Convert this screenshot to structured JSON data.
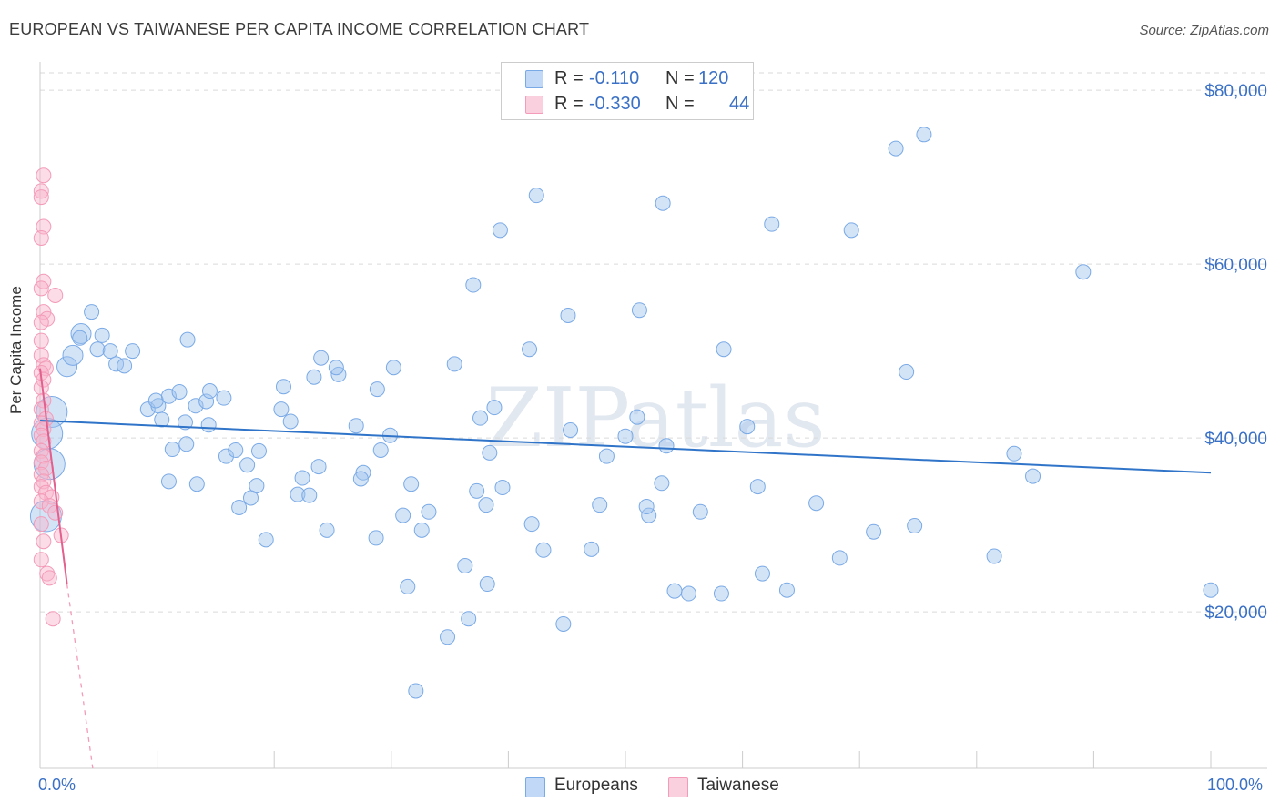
{
  "title": "EUROPEAN VS TAIWANESE PER CAPITA INCOME CORRELATION CHART",
  "source": "Source: ZipAtlas.com",
  "watermark": "ZIPatlas",
  "legend": {
    "rows": [
      {
        "r_label": "R =",
        "r_value": "-0.110",
        "n_label": "N =",
        "n_value": "120"
      },
      {
        "r_label": "R =",
        "r_value": "-0.330",
        "n_label": "N =",
        "n_value": "44"
      }
    ]
  },
  "bottom_legend": {
    "europeans": "Europeans",
    "taiwanese": "Taiwanese"
  },
  "x_axis": {
    "min_label": "0.0%",
    "max_label": "100.0%"
  },
  "chart_data": {
    "type": "scatter",
    "title": "EUROPEAN VS TAIWANESE PER CAPITA INCOME CORRELATION CHART",
    "xlabel": "",
    "ylabel": "Per Capita Income",
    "xlim": [
      0,
      100
    ],
    "ylim": [
      2000,
      82000
    ],
    "y_ticks": [
      20000,
      40000,
      60000,
      80000
    ],
    "y_tick_labels": [
      "$20,000",
      "$40,000",
      "$60,000",
      "$80,000"
    ],
    "x_tick_labels": [
      "0.0%",
      "100.0%"
    ],
    "grid": true,
    "legend_position": "top-center",
    "colors": {
      "europeans": "#7aaae6",
      "taiwanese": "#f39bb8",
      "europeans_line": "#2f74c8",
      "taiwanese_line": "#e2608d",
      "tick_text": "#3a70c5"
    },
    "series": [
      {
        "name": "Europeans",
        "r": -0.11,
        "n": 120,
        "trend": {
          "x": [
            0,
            100
          ],
          "y": [
            42000,
            36000
          ]
        },
        "points": [
          [
            1.0,
            43000,
            3
          ],
          [
            0.6,
            40500,
            3
          ],
          [
            0.8,
            37000,
            3
          ],
          [
            0.5,
            31000,
            3
          ],
          [
            2.3,
            48200,
            2
          ],
          [
            2.8,
            49500,
            2
          ],
          [
            3.5,
            52000,
            2
          ],
          [
            4.4,
            54500,
            1
          ],
          [
            3.4,
            51500,
            1
          ],
          [
            5.3,
            51800,
            1
          ],
          [
            4.9,
            50200,
            1
          ],
          [
            6.0,
            50000,
            1
          ],
          [
            6.5,
            48500,
            1
          ],
          [
            7.9,
            50000,
            1
          ],
          [
            7.2,
            48300,
            1
          ],
          [
            12.6,
            51300,
            1
          ],
          [
            9.2,
            43300,
            1
          ],
          [
            10.1,
            43700,
            1
          ],
          [
            9.9,
            44300,
            1
          ],
          [
            11.0,
            44800,
            1
          ],
          [
            11.9,
            45300,
            1
          ],
          [
            10.4,
            42100,
            1
          ],
          [
            13.3,
            43700,
            1
          ],
          [
            14.2,
            44200,
            1
          ],
          [
            14.5,
            45400,
            1
          ],
          [
            15.7,
            44600,
            1
          ],
          [
            12.4,
            41800,
            1
          ],
          [
            14.4,
            41500,
            1
          ],
          [
            11.3,
            38700,
            1
          ],
          [
            12.5,
            39300,
            1
          ],
          [
            15.9,
            37900,
            1
          ],
          [
            16.7,
            38600,
            1
          ],
          [
            17.7,
            36900,
            1
          ],
          [
            18.7,
            38500,
            1
          ],
          [
            20.8,
            45900,
            1
          ],
          [
            20.6,
            43300,
            1
          ],
          [
            21.4,
            41900,
            1
          ],
          [
            23.4,
            47000,
            1
          ],
          [
            25.5,
            47300,
            1
          ],
          [
            24.0,
            49200,
            1
          ],
          [
            25.3,
            48100,
            1
          ],
          [
            28.8,
            45600,
            1
          ],
          [
            30.2,
            48100,
            1
          ],
          [
            35.4,
            48500,
            1
          ],
          [
            27.0,
            41400,
            1
          ],
          [
            29.1,
            38600,
            1
          ],
          [
            29.9,
            40300,
            1
          ],
          [
            31.7,
            34700,
            1
          ],
          [
            23.8,
            36700,
            1
          ],
          [
            27.6,
            36000,
            1
          ],
          [
            27.4,
            35300,
            1
          ],
          [
            22.4,
            35400,
            1
          ],
          [
            22.0,
            33500,
            1
          ],
          [
            23.0,
            33400,
            1
          ],
          [
            18.5,
            34500,
            1
          ],
          [
            17.0,
            32000,
            1
          ],
          [
            18.0,
            33100,
            1
          ],
          [
            11.0,
            35000,
            1
          ],
          [
            13.4,
            34700,
            1
          ],
          [
            19.3,
            28300,
            1
          ],
          [
            24.5,
            29400,
            1
          ],
          [
            28.7,
            28500,
            1
          ],
          [
            31.0,
            31100,
            1
          ],
          [
            32.6,
            29400,
            1
          ],
          [
            33.2,
            31500,
            1
          ],
          [
            36.3,
            25300,
            1
          ],
          [
            31.4,
            22900,
            1
          ],
          [
            38.2,
            23200,
            1
          ],
          [
            37.3,
            33900,
            1
          ],
          [
            38.1,
            32300,
            1
          ],
          [
            39.5,
            34300,
            1
          ],
          [
            38.8,
            43500,
            1
          ],
          [
            37.6,
            42300,
            1
          ],
          [
            38.4,
            38300,
            1
          ],
          [
            41.8,
            50200,
            1
          ],
          [
            37.0,
            57600,
            1
          ],
          [
            39.3,
            63900,
            1
          ],
          [
            42.4,
            67900,
            1
          ],
          [
            42.0,
            30100,
            1
          ],
          [
            43.0,
            27100,
            1
          ],
          [
            36.6,
            19200,
            1
          ],
          [
            34.8,
            17100,
            1
          ],
          [
            32.1,
            10900,
            1
          ],
          [
            44.7,
            18600,
            1
          ],
          [
            45.1,
            54100,
            1
          ],
          [
            45.3,
            40900,
            1
          ],
          [
            47.8,
            32300,
            1
          ],
          [
            47.1,
            27200,
            1
          ],
          [
            48.4,
            37900,
            1
          ],
          [
            50.0,
            40200,
            1
          ],
          [
            51.0,
            42400,
            1
          ],
          [
            51.2,
            54700,
            1
          ],
          [
            52.0,
            31100,
            1
          ],
          [
            51.8,
            32100,
            1
          ],
          [
            53.1,
            34800,
            1
          ],
          [
            53.5,
            39100,
            1
          ],
          [
            53.2,
            67000,
            1
          ],
          [
            56.4,
            31500,
            1
          ],
          [
            54.2,
            22400,
            1
          ],
          [
            55.4,
            22100,
            1
          ],
          [
            58.4,
            50200,
            1
          ],
          [
            58.2,
            22100,
            1
          ],
          [
            60.4,
            41300,
            1
          ],
          [
            61.3,
            34400,
            1
          ],
          [
            61.7,
            24400,
            1
          ],
          [
            62.5,
            64600,
            1
          ],
          [
            63.8,
            22500,
            1
          ],
          [
            66.3,
            32500,
            1
          ],
          [
            68.3,
            26200,
            1
          ],
          [
            69.3,
            63900,
            1
          ],
          [
            71.2,
            29200,
            1
          ],
          [
            73.1,
            73300,
            1
          ],
          [
            74.0,
            47600,
            1
          ],
          [
            74.7,
            29900,
            1
          ],
          [
            75.5,
            74900,
            1
          ],
          [
            81.5,
            26400,
            1
          ],
          [
            83.2,
            38200,
            1
          ],
          [
            84.8,
            35600,
            1
          ],
          [
            89.1,
            59100,
            1
          ],
          [
            100.0,
            22500,
            1
          ]
        ]
      },
      {
        "name": "Taiwanese",
        "r": -0.33,
        "n": 44,
        "trend": {
          "x": [
            0,
            2.3
          ],
          "y": [
            48000,
            23200
          ]
        },
        "trend_extension": {
          "x": [
            2.3,
            4.5
          ],
          "y": [
            23200,
            -1000
          ]
        },
        "points": [
          [
            0.3,
            70200,
            1
          ],
          [
            0.1,
            68400,
            1
          ],
          [
            0.1,
            67700,
            1
          ],
          [
            0.3,
            64300,
            1
          ],
          [
            0.1,
            63000,
            1
          ],
          [
            0.3,
            58000,
            1
          ],
          [
            0.1,
            57200,
            1
          ],
          [
            1.3,
            56400,
            1
          ],
          [
            0.3,
            54500,
            1
          ],
          [
            0.6,
            53700,
            1
          ],
          [
            0.1,
            53300,
            1
          ],
          [
            0.1,
            51200,
            1
          ],
          [
            0.1,
            49500,
            1
          ],
          [
            0.3,
            48400,
            1
          ],
          [
            0.5,
            48000,
            1
          ],
          [
            0.1,
            47500,
            1
          ],
          [
            0.3,
            46700,
            1
          ],
          [
            0.1,
            45800,
            1
          ],
          [
            0.3,
            44300,
            1
          ],
          [
            0.1,
            43300,
            1
          ],
          [
            0.5,
            42200,
            1
          ],
          [
            0.1,
            41700,
            1
          ],
          [
            0.3,
            41000,
            1
          ],
          [
            0.1,
            40300,
            1
          ],
          [
            0.3,
            39600,
            1
          ],
          [
            0.1,
            38500,
            1
          ],
          [
            0.3,
            37900,
            1
          ],
          [
            0.1,
            37200,
            1
          ],
          [
            0.5,
            36500,
            1
          ],
          [
            0.1,
            35800,
            1
          ],
          [
            0.3,
            35000,
            1
          ],
          [
            0.1,
            34400,
            1
          ],
          [
            0.5,
            33700,
            1
          ],
          [
            1.0,
            33200,
            1
          ],
          [
            0.1,
            32700,
            1
          ],
          [
            0.8,
            32200,
            1
          ],
          [
            1.3,
            31400,
            1
          ],
          [
            0.1,
            30100,
            1
          ],
          [
            0.3,
            28100,
            1
          ],
          [
            1.8,
            28800,
            1
          ],
          [
            0.1,
            26000,
            1
          ],
          [
            0.6,
            24400,
            1
          ],
          [
            0.8,
            23900,
            1
          ],
          [
            1.1,
            19200,
            1
          ]
        ]
      }
    ]
  }
}
